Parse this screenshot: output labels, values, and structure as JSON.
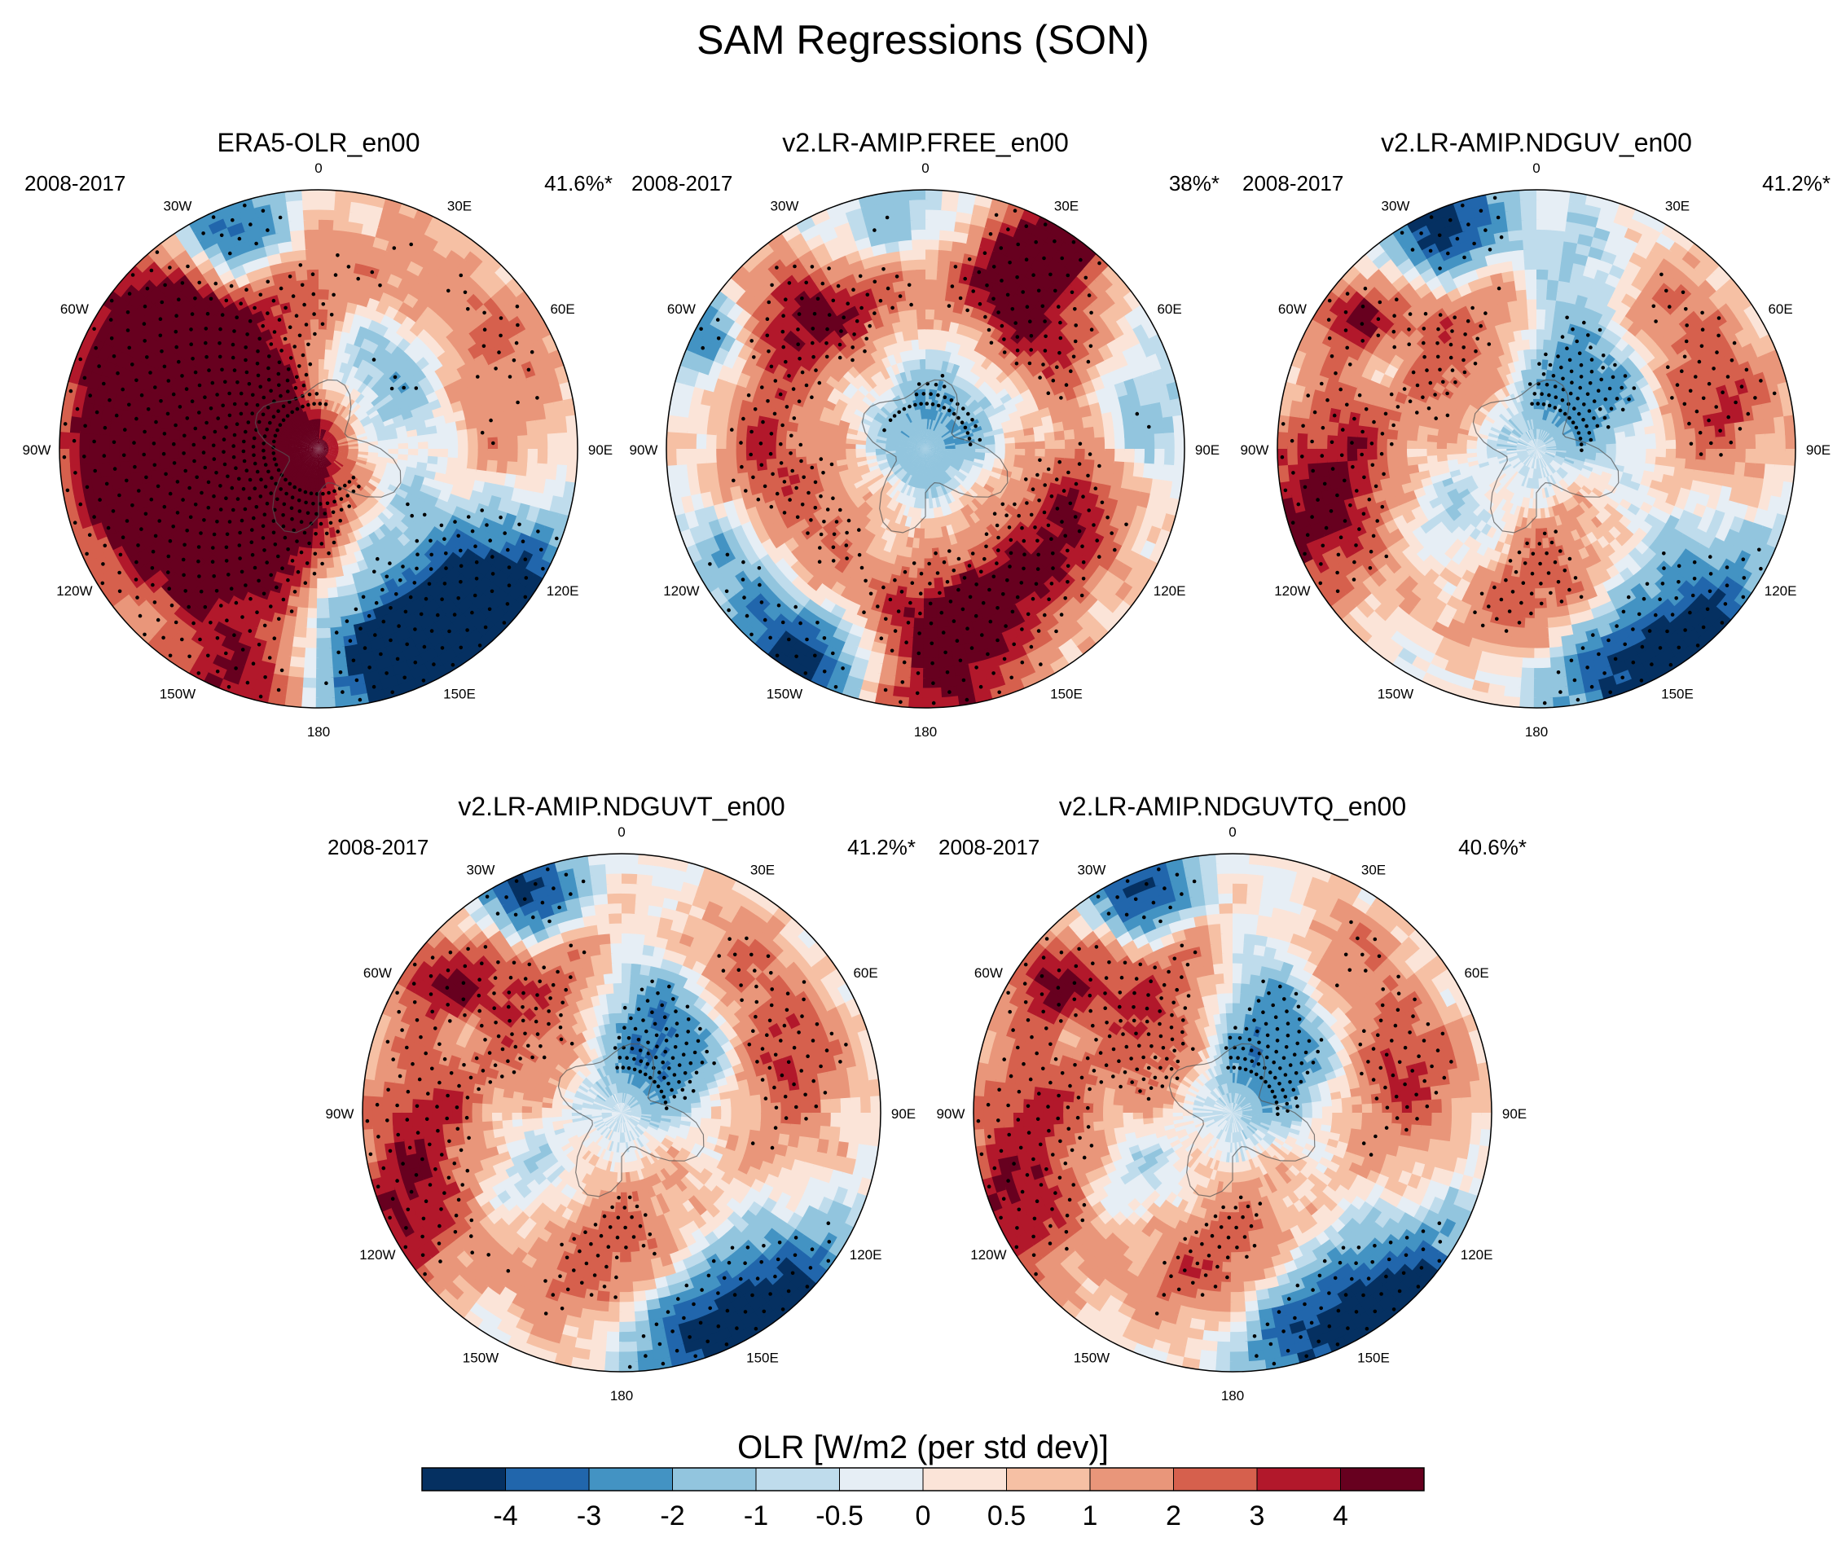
{
  "title": "SAM Regressions (SON)",
  "panels": [
    {
      "title": "ERA5-OLR_en00",
      "years": "2008-2017",
      "explained_variance": "41.6%*",
      "pattern": {
        "blobs": [
          [
            -22,
            80,
            14,
            -5
          ],
          [
            -55,
            68,
            20,
            5
          ],
          [
            -75,
            55,
            10,
            -3
          ],
          [
            -85,
            35,
            28,
            5
          ],
          [
            -105,
            50,
            26,
            5
          ],
          [
            -140,
            30,
            22,
            2.5
          ],
          [
            -120,
            20,
            20,
            2
          ],
          [
            -160,
            88,
            18,
            4
          ],
          [
            145,
            88,
            22,
            -5
          ],
          [
            125,
            80,
            18,
            -3
          ],
          [
            165,
            75,
            18,
            -3.5
          ],
          [
            -40,
            25,
            40,
            2.5
          ],
          [
            15,
            35,
            20,
            -2
          ],
          [
            30,
            65,
            18,
            1.5
          ],
          [
            60,
            75,
            16,
            2
          ],
          [
            90,
            60,
            18,
            1.5
          ],
          [
            80,
            15,
            25,
            1
          ],
          [
            0,
            0,
            30,
            -2.5
          ],
          [
            120,
            40,
            25,
            -1.5
          ],
          [
            -5,
            55,
            14,
            1.5
          ],
          [
            45,
            40,
            20,
            -1.8
          ]
        ],
        "ring": [
          0.4,
          55,
          14
        ]
      }
    },
    {
      "title": "v2.LR-AMIP.FREE_en00",
      "years": "2008-2017",
      "explained_variance": "38%*",
      "pattern": {
        "blobs": [
          [
            -50,
            75,
            16,
            3
          ],
          [
            -60,
            85,
            12,
            -4
          ],
          [
            -30,
            50,
            16,
            2.5
          ],
          [
            25,
            75,
            12,
            3.5
          ],
          [
            35,
            88,
            10,
            4.5
          ],
          [
            40,
            55,
            18,
            3
          ],
          [
            80,
            70,
            14,
            -2
          ],
          [
            120,
            55,
            18,
            2.5
          ],
          [
            160,
            60,
            18,
            3
          ],
          [
            180,
            85,
            20,
            4
          ],
          [
            -150,
            85,
            20,
            -5
          ],
          [
            -120,
            70,
            14,
            -2.5
          ],
          [
            -100,
            45,
            20,
            2
          ],
          [
            -140,
            50,
            20,
            1.5
          ],
          [
            0,
            30,
            25,
            -1
          ],
          [
            0,
            0,
            20,
            -1.5
          ],
          [
            100,
            30,
            18,
            1
          ],
          [
            -10,
            80,
            14,
            -1.5
          ],
          [
            60,
            20,
            15,
            -1
          ]
        ],
        "ring": [
          1.6,
          58,
          12
        ]
      }
    },
    {
      "title": "v2.LR-AMIP.NDGUV_en00",
      "years": "2008-2017",
      "explained_variance": "41.2%*",
      "pattern": {
        "blobs": [
          [
            -22,
            82,
            14,
            -5
          ],
          [
            -55,
            75,
            12,
            4
          ],
          [
            -60,
            62,
            8,
            -3
          ],
          [
            -90,
            70,
            16,
            2.5
          ],
          [
            -110,
            85,
            18,
            4
          ],
          [
            -45,
            40,
            18,
            2.5
          ],
          [
            15,
            60,
            18,
            -2
          ],
          [
            40,
            65,
            16,
            2
          ],
          [
            75,
            68,
            16,
            2.5
          ],
          [
            55,
            30,
            18,
            -2
          ],
          [
            10,
            20,
            18,
            -1.5
          ],
          [
            140,
            88,
            22,
            -5
          ],
          [
            165,
            78,
            16,
            -3
          ],
          [
            -140,
            40,
            18,
            -1.5
          ],
          [
            170,
            45,
            18,
            2
          ],
          [
            -170,
            50,
            18,
            1.5
          ],
          [
            120,
            55,
            16,
            -1
          ],
          [
            -15,
            55,
            14,
            1.5
          ],
          [
            100,
            40,
            20,
            1
          ]
        ],
        "ring": [
          0.6,
          62,
          15
        ]
      }
    },
    {
      "title": "v2.LR-AMIP.NDGUVT_en00",
      "years": "2008-2017",
      "explained_variance": "41.2%*",
      "pattern": {
        "blobs": [
          [
            -22,
            82,
            12,
            -5
          ],
          [
            -55,
            75,
            14,
            4
          ],
          [
            -62,
            62,
            7,
            -3
          ],
          [
            -90,
            70,
            16,
            2.5
          ],
          [
            -115,
            85,
            18,
            4
          ],
          [
            -45,
            40,
            18,
            2.5
          ],
          [
            15,
            45,
            18,
            -2
          ],
          [
            35,
            65,
            16,
            2
          ],
          [
            70,
            60,
            16,
            2.5
          ],
          [
            55,
            30,
            16,
            -2
          ],
          [
            140,
            88,
            22,
            -5
          ],
          [
            165,
            78,
            16,
            -3
          ],
          [
            -130,
            45,
            18,
            -1.5
          ],
          [
            175,
            45,
            18,
            2
          ],
          [
            -160,
            55,
            18,
            1.5
          ],
          [
            10,
            20,
            18,
            -1.5
          ],
          [
            -15,
            55,
            14,
            1.5
          ],
          [
            100,
            40,
            20,
            1
          ]
        ],
        "ring": [
          0.6,
          62,
          15
        ]
      }
    },
    {
      "title": "v2.LR-AMIP.NDGUVTQ_en00",
      "years": "2008-2017",
      "explained_variance": "40.6%*",
      "pattern": {
        "blobs": [
          [
            -22,
            82,
            12,
            -5
          ],
          [
            -55,
            75,
            14,
            4
          ],
          [
            -62,
            62,
            7,
            -2.5
          ],
          [
            -90,
            70,
            16,
            2.5
          ],
          [
            -115,
            85,
            18,
            4
          ],
          [
            -45,
            35,
            18,
            3
          ],
          [
            15,
            50,
            16,
            -2
          ],
          [
            35,
            65,
            16,
            2
          ],
          [
            75,
            62,
            16,
            2.5
          ],
          [
            50,
            25,
            18,
            -2.2
          ],
          [
            140,
            88,
            22,
            -5
          ],
          [
            165,
            78,
            16,
            -3
          ],
          [
            -130,
            45,
            18,
            -1.5
          ],
          [
            175,
            45,
            18,
            2
          ],
          [
            -160,
            55,
            18,
            1.5
          ],
          [
            10,
            20,
            18,
            -1.5
          ],
          [
            -15,
            55,
            14,
            1.5
          ],
          [
            100,
            40,
            20,
            1
          ]
        ],
        "ring": [
          0.6,
          62,
          15
        ]
      }
    }
  ],
  "longitude_labels": [
    {
      "lon": 0,
      "text": "0"
    },
    {
      "lon": 30,
      "text": "30E"
    },
    {
      "lon": 60,
      "text": "60E"
    },
    {
      "lon": 90,
      "text": "90E"
    },
    {
      "lon": 120,
      "text": "120E"
    },
    {
      "lon": 150,
      "text": "150E"
    },
    {
      "lon": 180,
      "text": "180"
    },
    {
      "lon": -150,
      "text": "150W"
    },
    {
      "lon": -120,
      "text": "120W"
    },
    {
      "lon": -90,
      "text": "90W"
    },
    {
      "lon": -60,
      "text": "60W"
    },
    {
      "lon": -30,
      "text": "30W"
    }
  ],
  "colorbar": {
    "label": "OLR [W/m2 (per std dev)]",
    "boundaries": [
      -5,
      -4,
      -3,
      -2,
      -1,
      -0.5,
      0,
      0.5,
      1,
      2,
      3,
      4,
      5
    ],
    "tick_labels": [
      "-4",
      "-3",
      "-2",
      "-1",
      "-0.5",
      "0",
      "0.5",
      "1",
      "2",
      "3",
      "4"
    ],
    "colors": [
      "#053061",
      "#2166ac",
      "#4393c3",
      "#92c5de",
      "#bfdcec",
      "#e6eef5",
      "#fbe4d8",
      "#f6c0a4",
      "#e9967a",
      "#d6604d",
      "#b2182b",
      "#67001f"
    ]
  },
  "chart_data": {
    "type": "heatmap",
    "projection": "south-polar-stereographic",
    "title": "SAM Regressions (SON)",
    "variable": "OLR [W/m2 (per std dev)]",
    "period": "2008-2017",
    "panels": [
      {
        "name": "ERA5-OLR_en00",
        "explained_variance_pct": 41.6,
        "significant": true
      },
      {
        "name": "v2.LR-AMIP.FREE_en00",
        "explained_variance_pct": 38,
        "significant": true
      },
      {
        "name": "v2.LR-AMIP.NDGUV_en00",
        "explained_variance_pct": 41.2,
        "significant": true
      },
      {
        "name": "v2.LR-AMIP.NDGUVT_en00",
        "explained_variance_pct": 41.2,
        "significant": true
      },
      {
        "name": "v2.LR-AMIP.NDGUVTQ_en00",
        "explained_variance_pct": 40.6,
        "significant": true
      }
    ],
    "contour_levels": [
      -4,
      -3,
      -2,
      -1,
      -0.5,
      0,
      0.5,
      1,
      2,
      3,
      4
    ],
    "longitude_ticks": [
      "0",
      "30E",
      "60E",
      "90E",
      "120E",
      "150E",
      "180",
      "150W",
      "120W",
      "90W",
      "60W",
      "30W"
    ]
  }
}
